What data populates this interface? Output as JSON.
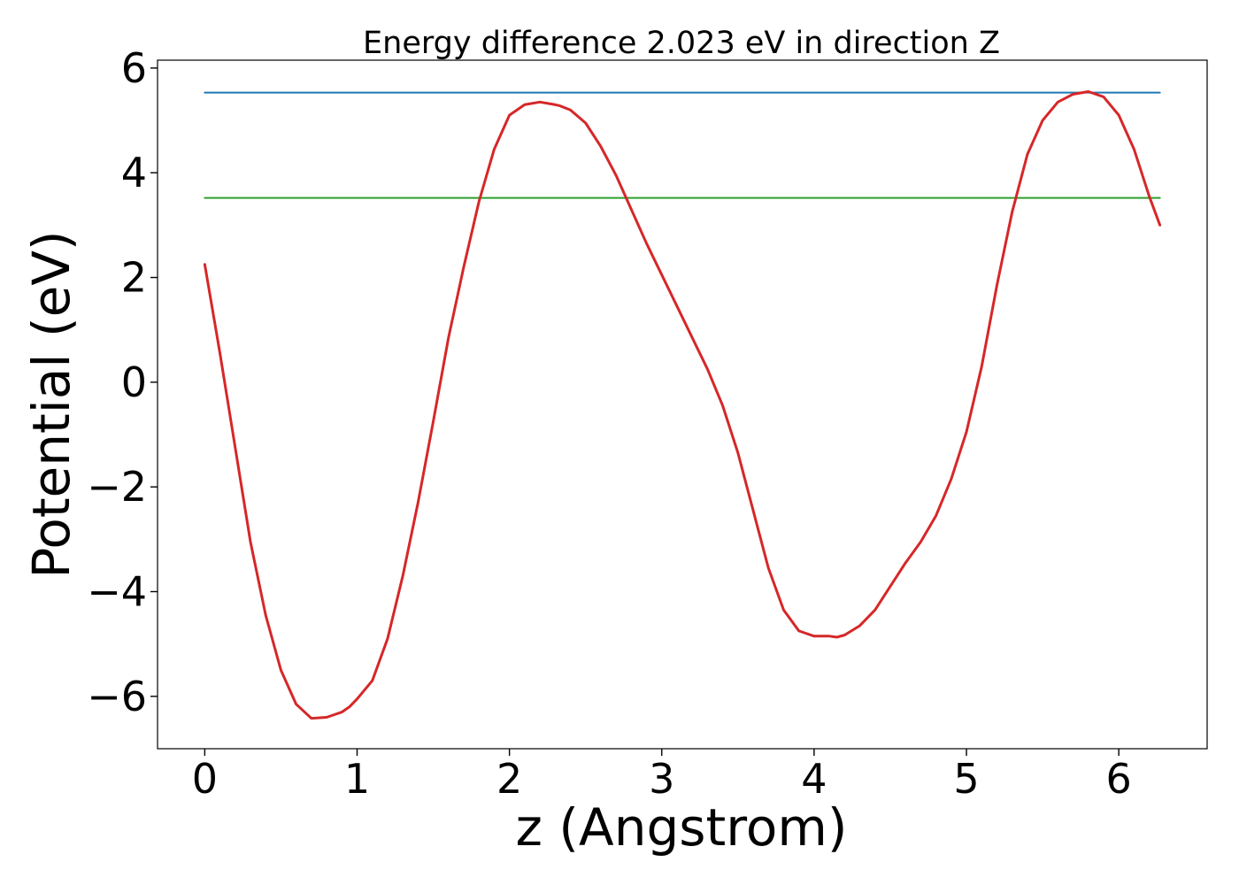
{
  "chart_data": {
    "type": "line",
    "title": "Energy difference 2.023 eV in direction Z",
    "xlabel": "z (Angstrom)",
    "ylabel": "Potential (eV)",
    "xlim": [
      -0.31,
      6.58
    ],
    "ylim": [
      -7.0,
      6.15
    ],
    "x_ticks": [
      0,
      1,
      2,
      3,
      4,
      5,
      6
    ],
    "x_tick_labels": [
      "0",
      "1",
      "2",
      "3",
      "4",
      "5",
      "6"
    ],
    "y_ticks": [
      -6,
      -4,
      -2,
      0,
      2,
      4,
      6
    ],
    "y_tick_labels": [
      "−6",
      "−4",
      "−2",
      "0",
      "2",
      "4",
      "6"
    ],
    "grid": false,
    "series": [
      {
        "color": "#1f77b4",
        "kind": "hline",
        "x": [
          0.0,
          6.27
        ],
        "y": [
          5.53,
          5.53
        ]
      },
      {
        "color": "#2ca02c",
        "kind": "hline",
        "x": [
          0.0,
          6.27
        ],
        "y": [
          3.52,
          3.52
        ]
      },
      {
        "color": "#d62728",
        "kind": "curve",
        "x": [
          0.0,
          0.1,
          0.2,
          0.3,
          0.4,
          0.5,
          0.6,
          0.7,
          0.8,
          0.9,
          0.95,
          1.0,
          1.1,
          1.2,
          1.3,
          1.4,
          1.5,
          1.6,
          1.7,
          1.8,
          1.9,
          2.0,
          2.1,
          2.2,
          2.3,
          2.33,
          2.4,
          2.5,
          2.6,
          2.7,
          2.8,
          2.9,
          3.0,
          3.1,
          3.2,
          3.3,
          3.4,
          3.5,
          3.6,
          3.7,
          3.8,
          3.9,
          4.0,
          4.1,
          4.15,
          4.2,
          4.3,
          4.4,
          4.5,
          4.6,
          4.7,
          4.8,
          4.9,
          5.0,
          5.1,
          5.2,
          5.3,
          5.4,
          5.5,
          5.6,
          5.7,
          5.8,
          5.9,
          6.0,
          6.1,
          6.2,
          6.27
        ],
        "y": [
          2.25,
          0.55,
          -1.25,
          -3.05,
          -4.45,
          -5.5,
          -6.15,
          -6.42,
          -6.4,
          -6.3,
          -6.2,
          -6.05,
          -5.7,
          -4.9,
          -3.7,
          -2.3,
          -0.75,
          0.85,
          2.2,
          3.45,
          4.45,
          5.1,
          5.3,
          5.35,
          5.3,
          5.28,
          5.2,
          4.95,
          4.5,
          3.95,
          3.3,
          2.65,
          2.05,
          1.45,
          0.85,
          0.25,
          -0.45,
          -1.35,
          -2.45,
          -3.55,
          -4.35,
          -4.75,
          -4.85,
          -4.85,
          -4.87,
          -4.83,
          -4.65,
          -4.35,
          -3.9,
          -3.45,
          -3.05,
          -2.55,
          -1.85,
          -0.95,
          0.3,
          1.85,
          3.25,
          4.35,
          5.0,
          5.35,
          5.5,
          5.55,
          5.45,
          5.1,
          4.45,
          3.55,
          3.0
        ]
      }
    ]
  }
}
